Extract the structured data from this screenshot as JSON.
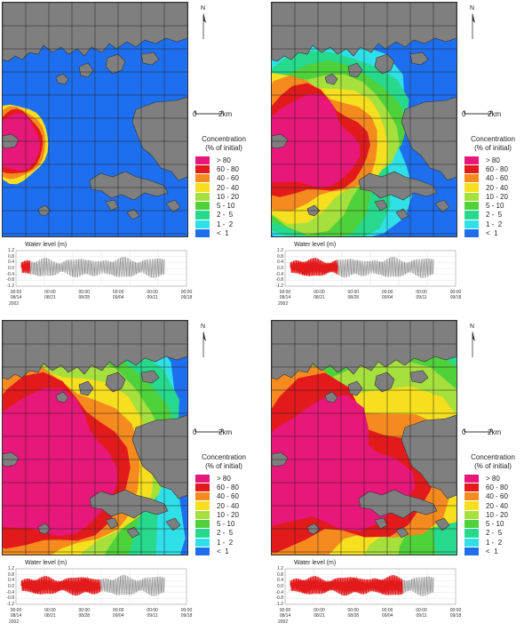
{
  "colors": {
    "gt80": "#e8177a",
    "c60_80": "#e31a1c",
    "c40_60": "#f58a1f",
    "c20_40": "#f5df1e",
    "c10_20": "#a6e03c",
    "c5_10": "#4fd13b",
    "c2_5": "#27d98c",
    "c1_2": "#2fe0e8",
    "lt1": "#1e6ff0",
    "land": "#7f7f7f"
  },
  "north_label": "N",
  "scale": {
    "zero": "0",
    "dist": "2km"
  },
  "legend": {
    "title_line1": "Concentration",
    "title_line2": "(% of initial)",
    "items": [
      "> 80",
      "60 - 80",
      "40 - 60",
      "20 - 40",
      "10 - 20",
      "5 - 10",
      "2 -  5",
      "1 -  2",
      "<  1"
    ]
  },
  "water_level": {
    "title": "Water level (m)",
    "yticks": [
      "1.2",
      "0.8",
      "0.4",
      "0.0",
      "-0.4",
      "-0.8",
      "-1.2"
    ],
    "xticks_time": [
      "00:00",
      "00:00",
      "00:00",
      "00:00",
      "00:00",
      "00:00"
    ],
    "xticks_date": [
      "08/14",
      "08/21",
      "08/28",
      "09/04",
      "09/11",
      "09/18"
    ],
    "year": "2002"
  },
  "panels": [
    {
      "progress": 0.06
    },
    {
      "progress": 0.33
    },
    {
      "progress": 0.55
    },
    {
      "progress": 0.78
    }
  ]
}
